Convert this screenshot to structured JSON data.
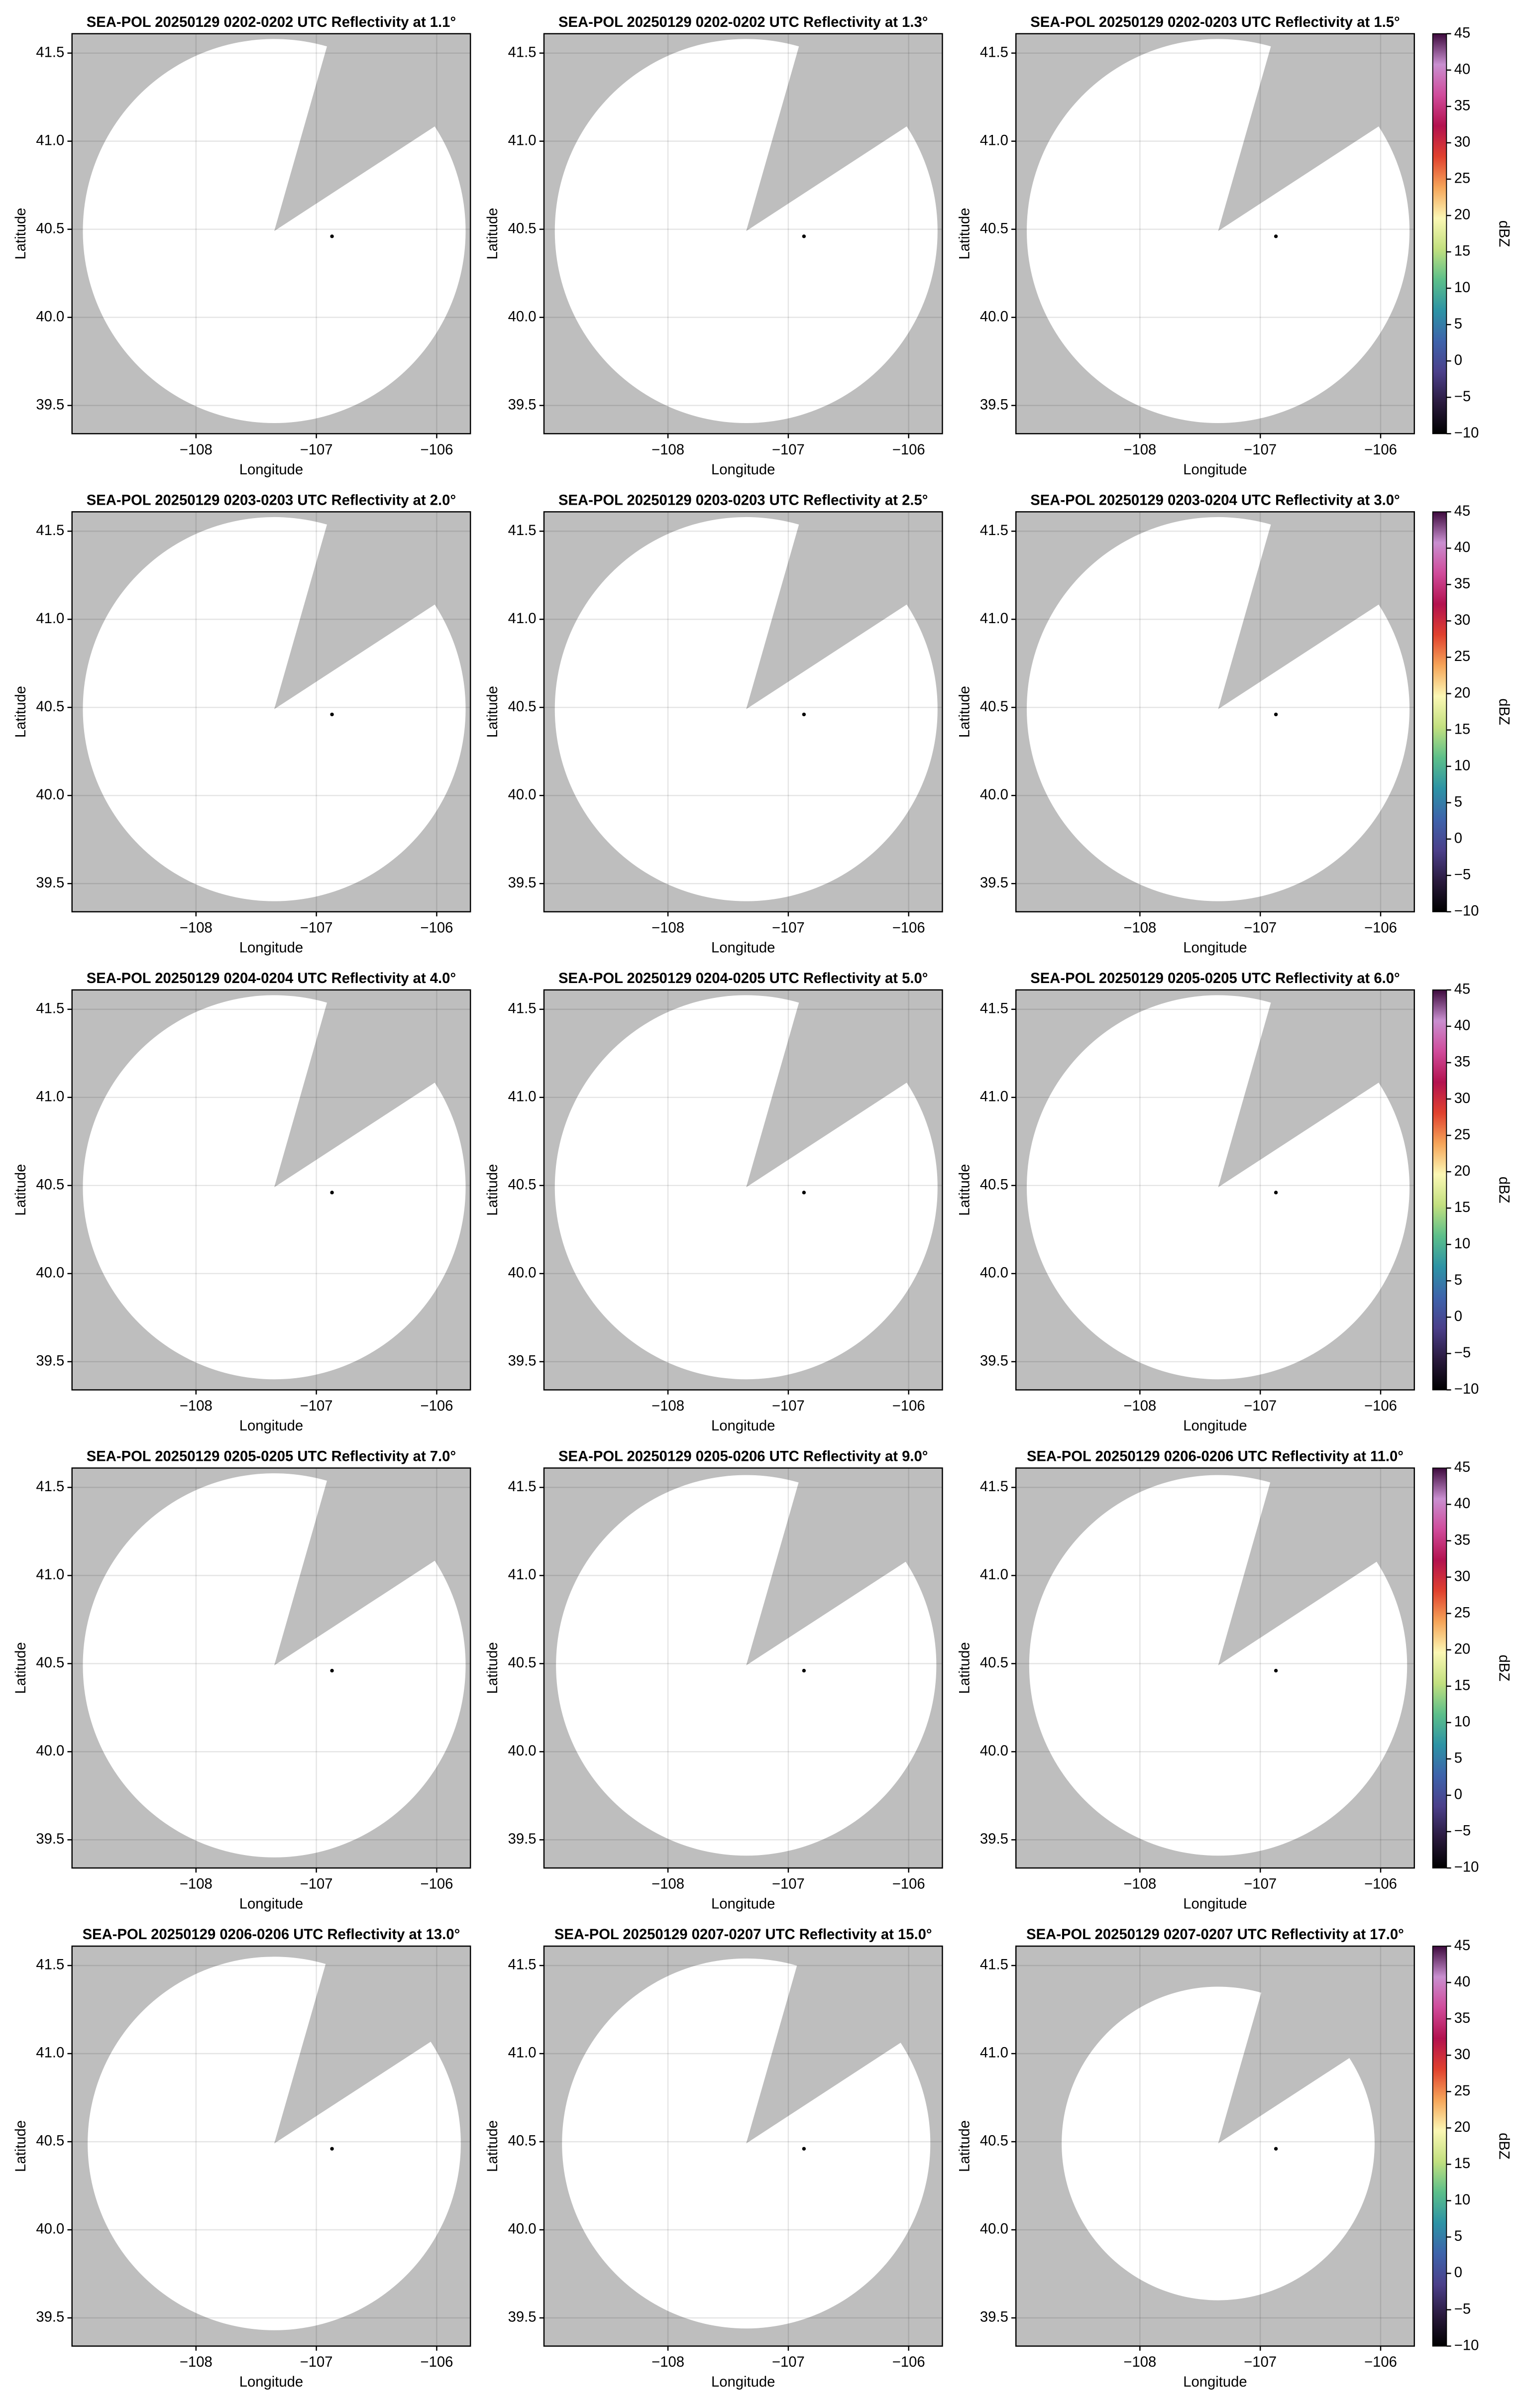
{
  "chart_data": [
    {
      "type": "ppi",
      "title": "SEA-POL 20250129 0202-0202 UTC Reflectivity at 1.1°",
      "xlabel": "Longitude",
      "ylabel": "Latitude",
      "xlim": [
        -109.03,
        -105.72
      ],
      "ylim": [
        39.34,
        41.61
      ],
      "xticks": [
        {
          "value": -108,
          "label": "−108"
        },
        {
          "value": -107,
          "label": "−107"
        },
        {
          "value": -106,
          "label": "−106"
        }
      ],
      "yticks": [
        39.5,
        {
          "value": 40,
          "label": "40.0"
        },
        40.5,
        {
          "value": 41,
          "label": "41.0"
        },
        41.5
      ],
      "grid": true,
      "background": "#bebebe",
      "coverage": {
        "center": [
          -107.35,
          40.49
        ],
        "radius": [
          1.59,
          1.09
        ],
        "blocked_azimuth": [
          16,
          57
        ],
        "color": "#ffffff"
      },
      "site": [
        -106.87,
        40.46
      ]
    },
    {
      "type": "ppi",
      "title": "SEA-POL 20250129 0202-0202 UTC Reflectivity at 1.3°",
      "xlabel": "Longitude",
      "ylabel": "Latitude",
      "xlim": [
        -109.03,
        -105.72
      ],
      "ylim": [
        39.34,
        41.61
      ],
      "xticks": [
        {
          "value": -108,
          "label": "−108"
        },
        {
          "value": -107,
          "label": "−107"
        },
        {
          "value": -106,
          "label": "−106"
        }
      ],
      "yticks": [
        39.5,
        {
          "value": 40,
          "label": "40.0"
        },
        40.5,
        {
          "value": 41,
          "label": "41.0"
        },
        41.5
      ],
      "grid": true,
      "background": "#bebebe",
      "coverage": {
        "center": [
          -107.35,
          40.49
        ],
        "radius": [
          1.59,
          1.09
        ],
        "blocked_azimuth": [
          16,
          57
        ],
        "color": "#ffffff"
      },
      "site": [
        -106.87,
        40.46
      ]
    },
    {
      "type": "ppi",
      "title": "SEA-POL 20250129 0202-0203 UTC Reflectivity at 1.5°",
      "xlabel": "Longitude",
      "ylabel": "Latitude",
      "xlim": [
        -109.03,
        -105.72
      ],
      "ylim": [
        39.34,
        41.61
      ],
      "xticks": [
        {
          "value": -108,
          "label": "−108"
        },
        {
          "value": -107,
          "label": "−107"
        },
        {
          "value": -106,
          "label": "−106"
        }
      ],
      "yticks": [
        39.5,
        {
          "value": 40,
          "label": "40.0"
        },
        40.5,
        {
          "value": 41,
          "label": "41.0"
        },
        41.5
      ],
      "grid": true,
      "background": "#bebebe",
      "coverage": {
        "center": [
          -107.35,
          40.49
        ],
        "radius": [
          1.59,
          1.09
        ],
        "blocked_azimuth": [
          16,
          57
        ],
        "color": "#ffffff"
      },
      "site": [
        -106.87,
        40.46
      ],
      "colorbar": {
        "label": "dBZ",
        "lim": [
          -10,
          45
        ],
        "ticks": [
          {
            "value": -10,
            "label": "−10"
          },
          {
            "value": -5,
            "label": "−5"
          },
          0,
          5,
          10,
          15,
          20,
          25,
          30,
          35,
          40,
          45
        ],
        "colors": [
          "#000000",
          "#2a1a3e",
          "#4b3f8a",
          "#3e63ab",
          "#2d93a5",
          "#5cbf8a",
          "#c2e07f",
          "#fbf7b4",
          "#f6a559",
          "#e0412e",
          "#b3124f",
          "#d04b9b",
          "#c98fd0",
          "#3d0a3d"
        ]
      }
    },
    {
      "type": "ppi",
      "title": "SEA-POL 20250129 0203-0203 UTC Reflectivity at 2.0°",
      "xlabel": "Longitude",
      "ylabel": "Latitude",
      "xlim": [
        -109.03,
        -105.72
      ],
      "ylim": [
        39.34,
        41.61
      ],
      "xticks": [
        {
          "value": -108,
          "label": "−108"
        },
        {
          "value": -107,
          "label": "−107"
        },
        {
          "value": -106,
          "label": "−106"
        }
      ],
      "yticks": [
        39.5,
        {
          "value": 40,
          "label": "40.0"
        },
        40.5,
        {
          "value": 41,
          "label": "41.0"
        },
        41.5
      ],
      "grid": true,
      "background": "#bebebe",
      "coverage": {
        "center": [
          -107.35,
          40.49
        ],
        "radius": [
          1.59,
          1.09
        ],
        "blocked_azimuth": [
          16,
          57
        ],
        "color": "#ffffff"
      },
      "site": [
        -106.87,
        40.46
      ]
    },
    {
      "type": "ppi",
      "title": "SEA-POL 20250129 0203-0203 UTC Reflectivity at 2.5°",
      "xlabel": "Longitude",
      "ylabel": "Latitude",
      "xlim": [
        -109.03,
        -105.72
      ],
      "ylim": [
        39.34,
        41.61
      ],
      "xticks": [
        {
          "value": -108,
          "label": "−108"
        },
        {
          "value": -107,
          "label": "−107"
        },
        {
          "value": -106,
          "label": "−106"
        }
      ],
      "yticks": [
        39.5,
        {
          "value": 40,
          "label": "40.0"
        },
        40.5,
        {
          "value": 41,
          "label": "41.0"
        },
        41.5
      ],
      "grid": true,
      "background": "#bebebe",
      "coverage": {
        "center": [
          -107.35,
          40.49
        ],
        "radius": [
          1.59,
          1.09
        ],
        "blocked_azimuth": [
          16,
          57
        ],
        "color": "#ffffff"
      },
      "site": [
        -106.87,
        40.46
      ]
    },
    {
      "type": "ppi",
      "title": "SEA-POL 20250129 0203-0204 UTC Reflectivity at 3.0°",
      "xlabel": "Longitude",
      "ylabel": "Latitude",
      "xlim": [
        -109.03,
        -105.72
      ],
      "ylim": [
        39.34,
        41.61
      ],
      "xticks": [
        {
          "value": -108,
          "label": "−108"
        },
        {
          "value": -107,
          "label": "−107"
        },
        {
          "value": -106,
          "label": "−106"
        }
      ],
      "yticks": [
        39.5,
        {
          "value": 40,
          "label": "40.0"
        },
        40.5,
        {
          "value": 41,
          "label": "41.0"
        },
        41.5
      ],
      "grid": true,
      "background": "#bebebe",
      "coverage": {
        "center": [
          -107.35,
          40.49
        ],
        "radius": [
          1.59,
          1.09
        ],
        "blocked_azimuth": [
          16,
          57
        ],
        "color": "#ffffff"
      },
      "site": [
        -106.87,
        40.46
      ],
      "colorbar": {
        "label": "dBZ",
        "lim": [
          -10,
          45
        ],
        "ticks": [
          {
            "value": -10,
            "label": "−10"
          },
          {
            "value": -5,
            "label": "−5"
          },
          0,
          5,
          10,
          15,
          20,
          25,
          30,
          35,
          40,
          45
        ],
        "colors": [
          "#000000",
          "#2a1a3e",
          "#4b3f8a",
          "#3e63ab",
          "#2d93a5",
          "#5cbf8a",
          "#c2e07f",
          "#fbf7b4",
          "#f6a559",
          "#e0412e",
          "#b3124f",
          "#d04b9b",
          "#c98fd0",
          "#3d0a3d"
        ]
      }
    },
    {
      "type": "ppi",
      "title": "SEA-POL 20250129 0204-0204 UTC Reflectivity at 4.0°",
      "xlabel": "Longitude",
      "ylabel": "Latitude",
      "xlim": [
        -109.03,
        -105.72
      ],
      "ylim": [
        39.34,
        41.61
      ],
      "xticks": [
        {
          "value": -108,
          "label": "−108"
        },
        {
          "value": -107,
          "label": "−107"
        },
        {
          "value": -106,
          "label": "−106"
        }
      ],
      "yticks": [
        39.5,
        {
          "value": 40,
          "label": "40.0"
        },
        40.5,
        {
          "value": 41,
          "label": "41.0"
        },
        41.5
      ],
      "grid": true,
      "background": "#bebebe",
      "coverage": {
        "center": [
          -107.35,
          40.49
        ],
        "radius": [
          1.59,
          1.09
        ],
        "blocked_azimuth": [
          16,
          57
        ],
        "color": "#ffffff"
      },
      "site": [
        -106.87,
        40.46
      ]
    },
    {
      "type": "ppi",
      "title": "SEA-POL 20250129 0204-0205 UTC Reflectivity at 5.0°",
      "xlabel": "Longitude",
      "ylabel": "Latitude",
      "xlim": [
        -109.03,
        -105.72
      ],
      "ylim": [
        39.34,
        41.61
      ],
      "xticks": [
        {
          "value": -108,
          "label": "−108"
        },
        {
          "value": -107,
          "label": "−107"
        },
        {
          "value": -106,
          "label": "−106"
        }
      ],
      "yticks": [
        39.5,
        {
          "value": 40,
          "label": "40.0"
        },
        40.5,
        {
          "value": 41,
          "label": "41.0"
        },
        41.5
      ],
      "grid": true,
      "background": "#bebebe",
      "coverage": {
        "center": [
          -107.35,
          40.49
        ],
        "radius": [
          1.59,
          1.09
        ],
        "blocked_azimuth": [
          16,
          57
        ],
        "color": "#ffffff"
      },
      "site": [
        -106.87,
        40.46
      ]
    },
    {
      "type": "ppi",
      "title": "SEA-POL 20250129 0205-0205 UTC Reflectivity at 6.0°",
      "xlabel": "Longitude",
      "ylabel": "Latitude",
      "xlim": [
        -109.03,
        -105.72
      ],
      "ylim": [
        39.34,
        41.61
      ],
      "xticks": [
        {
          "value": -108,
          "label": "−108"
        },
        {
          "value": -107,
          "label": "−107"
        },
        {
          "value": -106,
          "label": "−106"
        }
      ],
      "yticks": [
        39.5,
        {
          "value": 40,
          "label": "40.0"
        },
        40.5,
        {
          "value": 41,
          "label": "41.0"
        },
        41.5
      ],
      "grid": true,
      "background": "#bebebe",
      "coverage": {
        "center": [
          -107.35,
          40.49
        ],
        "radius": [
          1.59,
          1.09
        ],
        "blocked_azimuth": [
          16,
          57
        ],
        "color": "#ffffff"
      },
      "site": [
        -106.87,
        40.46
      ],
      "colorbar": {
        "label": "dBZ",
        "lim": [
          -10,
          45
        ],
        "ticks": [
          {
            "value": -10,
            "label": "−10"
          },
          {
            "value": -5,
            "label": "−5"
          },
          0,
          5,
          10,
          15,
          20,
          25,
          30,
          35,
          40,
          45
        ],
        "colors": [
          "#000000",
          "#2a1a3e",
          "#4b3f8a",
          "#3e63ab",
          "#2d93a5",
          "#5cbf8a",
          "#c2e07f",
          "#fbf7b4",
          "#f6a559",
          "#e0412e",
          "#b3124f",
          "#d04b9b",
          "#c98fd0",
          "#3d0a3d"
        ]
      }
    },
    {
      "type": "ppi",
      "title": "SEA-POL 20250129 0205-0205 UTC Reflectivity at 7.0°",
      "xlabel": "Longitude",
      "ylabel": "Latitude",
      "xlim": [
        -109.03,
        -105.72
      ],
      "ylim": [
        39.34,
        41.61
      ],
      "xticks": [
        {
          "value": -108,
          "label": "−108"
        },
        {
          "value": -107,
          "label": "−107"
        },
        {
          "value": -106,
          "label": "−106"
        }
      ],
      "yticks": [
        39.5,
        {
          "value": 40,
          "label": "40.0"
        },
        40.5,
        {
          "value": 41,
          "label": "41.0"
        },
        41.5
      ],
      "grid": true,
      "background": "#bebebe",
      "coverage": {
        "center": [
          -107.35,
          40.49
        ],
        "radius": [
          1.59,
          1.09
        ],
        "blocked_azimuth": [
          16,
          57
        ],
        "color": "#ffffff"
      },
      "site": [
        -106.87,
        40.46
      ]
    },
    {
      "type": "ppi",
      "title": "SEA-POL 20250129 0205-0206 UTC Reflectivity at 9.0°",
      "xlabel": "Longitude",
      "ylabel": "Latitude",
      "xlim": [
        -109.03,
        -105.72
      ],
      "ylim": [
        39.34,
        41.61
      ],
      "xticks": [
        {
          "value": -108,
          "label": "−108"
        },
        {
          "value": -107,
          "label": "−107"
        },
        {
          "value": -106,
          "label": "−106"
        }
      ],
      "yticks": [
        39.5,
        {
          "value": 40,
          "label": "40.0"
        },
        40.5,
        {
          "value": 41,
          "label": "41.0"
        },
        41.5
      ],
      "grid": true,
      "background": "#bebebe",
      "coverage": {
        "center": [
          -107.35,
          40.49
        ],
        "radius": [
          1.58,
          1.08
        ],
        "blocked_azimuth": [
          16,
          57
        ],
        "color": "#ffffff"
      },
      "site": [
        -106.87,
        40.46
      ]
    },
    {
      "type": "ppi",
      "title": "SEA-POL 20250129 0206-0206 UTC Reflectivity at 11.0°",
      "xlabel": "Longitude",
      "ylabel": "Latitude",
      "xlim": [
        -109.03,
        -105.72
      ],
      "ylim": [
        39.34,
        41.61
      ],
      "xticks": [
        {
          "value": -108,
          "label": "−108"
        },
        {
          "value": -107,
          "label": "−107"
        },
        {
          "value": -106,
          "label": "−106"
        }
      ],
      "yticks": [
        39.5,
        {
          "value": 40,
          "label": "40.0"
        },
        40.5,
        {
          "value": 41,
          "label": "41.0"
        },
        41.5
      ],
      "grid": true,
      "background": "#bebebe",
      "coverage": {
        "center": [
          -107.35,
          40.49
        ],
        "radius": [
          1.57,
          1.08
        ],
        "blocked_azimuth": [
          16,
          57
        ],
        "color": "#ffffff"
      },
      "site": [
        -106.87,
        40.46
      ],
      "colorbar": {
        "label": "dBZ",
        "lim": [
          -10,
          45
        ],
        "ticks": [
          {
            "value": -10,
            "label": "−10"
          },
          {
            "value": -5,
            "label": "−5"
          },
          0,
          5,
          10,
          15,
          20,
          25,
          30,
          35,
          40,
          45
        ],
        "colors": [
          "#000000",
          "#2a1a3e",
          "#4b3f8a",
          "#3e63ab",
          "#2d93a5",
          "#5cbf8a",
          "#c2e07f",
          "#fbf7b4",
          "#f6a559",
          "#e0412e",
          "#b3124f",
          "#d04b9b",
          "#c98fd0",
          "#3d0a3d"
        ]
      }
    },
    {
      "type": "ppi",
      "title": "SEA-POL 20250129 0206-0206 UTC Reflectivity at 13.0°",
      "xlabel": "Longitude",
      "ylabel": "Latitude",
      "xlim": [
        -109.03,
        -105.72
      ],
      "ylim": [
        39.34,
        41.61
      ],
      "xticks": [
        {
          "value": -108,
          "label": "−108"
        },
        {
          "value": -107,
          "label": "−107"
        },
        {
          "value": -106,
          "label": "−106"
        }
      ],
      "yticks": [
        39.5,
        {
          "value": 40,
          "label": "40.0"
        },
        40.5,
        {
          "value": 41,
          "label": "41.0"
        },
        41.5
      ],
      "grid": true,
      "background": "#bebebe",
      "coverage": {
        "center": [
          -107.35,
          40.49
        ],
        "radius": [
          1.55,
          1.06
        ],
        "blocked_azimuth": [
          16,
          57
        ],
        "color": "#ffffff"
      },
      "site": [
        -106.87,
        40.46
      ]
    },
    {
      "type": "ppi",
      "title": "SEA-POL 20250129 0207-0207 UTC Reflectivity at 15.0°",
      "xlabel": "Longitude",
      "ylabel": "Latitude",
      "xlim": [
        -109.03,
        -105.72
      ],
      "ylim": [
        39.34,
        41.61
      ],
      "xticks": [
        {
          "value": -108,
          "label": "−108"
        },
        {
          "value": -107,
          "label": "−107"
        },
        {
          "value": -106,
          "label": "−106"
        }
      ],
      "yticks": [
        39.5,
        {
          "value": 40,
          "label": "40.0"
        },
        40.5,
        {
          "value": 41,
          "label": "41.0"
        },
        41.5
      ],
      "grid": true,
      "background": "#bebebe",
      "coverage": {
        "center": [
          -107.35,
          40.49
        ],
        "radius": [
          1.53,
          1.05
        ],
        "blocked_azimuth": [
          16,
          57
        ],
        "color": "#ffffff"
      },
      "site": [
        -106.87,
        40.46
      ]
    },
    {
      "type": "ppi",
      "title": "SEA-POL 20250129 0207-0207 UTC Reflectivity at 17.0°",
      "xlabel": "Longitude",
      "ylabel": "Latitude",
      "xlim": [
        -109.03,
        -105.72
      ],
      "ylim": [
        39.34,
        41.61
      ],
      "xticks": [
        {
          "value": -108,
          "label": "−108"
        },
        {
          "value": -107,
          "label": "−107"
        },
        {
          "value": -106,
          "label": "−106"
        }
      ],
      "yticks": [
        39.5,
        {
          "value": 40,
          "label": "40.0"
        },
        40.5,
        {
          "value": 41,
          "label": "41.0"
        },
        41.5
      ],
      "grid": true,
      "background": "#bebebe",
      "coverage": {
        "center": [
          -107.35,
          40.49
        ],
        "radius": [
          1.3,
          0.89
        ],
        "blocked_azimuth": [
          16,
          57
        ],
        "color": "#ffffff"
      },
      "site": [
        -106.87,
        40.46
      ],
      "colorbar": {
        "label": "dBZ",
        "lim": [
          -10,
          45
        ],
        "ticks": [
          {
            "value": -10,
            "label": "−10"
          },
          {
            "value": -5,
            "label": "−5"
          },
          0,
          5,
          10,
          15,
          20,
          25,
          30,
          35,
          40,
          45
        ],
        "colors": [
          "#000000",
          "#2a1a3e",
          "#4b3f8a",
          "#3e63ab",
          "#2d93a5",
          "#5cbf8a",
          "#c2e07f",
          "#fbf7b4",
          "#f6a559",
          "#e0412e",
          "#b3124f",
          "#d04b9b",
          "#c98fd0",
          "#3d0a3d"
        ]
      }
    }
  ]
}
